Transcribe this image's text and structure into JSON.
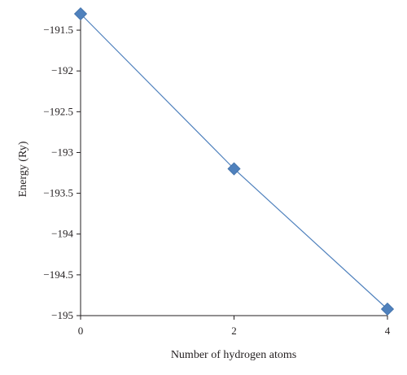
{
  "chart_data": {
    "type": "line",
    "title": "",
    "xlabel": "Number of hydrogen atoms",
    "ylabel": "Energy (Ry)",
    "x_ticks": [
      "0",
      "2",
      "4"
    ],
    "y_ticks": [
      "−191.5",
      "−192",
      "−192.5",
      "−193",
      "−193.5",
      "−194",
      "−194.5",
      "−195"
    ],
    "xlim": [
      0,
      4
    ],
    "ylim": [
      -195,
      -191.25
    ],
    "grid": false,
    "series": [
      {
        "x": [
          0,
          2,
          4
        ],
        "y": [
          -191.3,
          -193.2,
          -194.92
        ],
        "color": "#4f81bd",
        "marker": "diamond"
      }
    ]
  }
}
